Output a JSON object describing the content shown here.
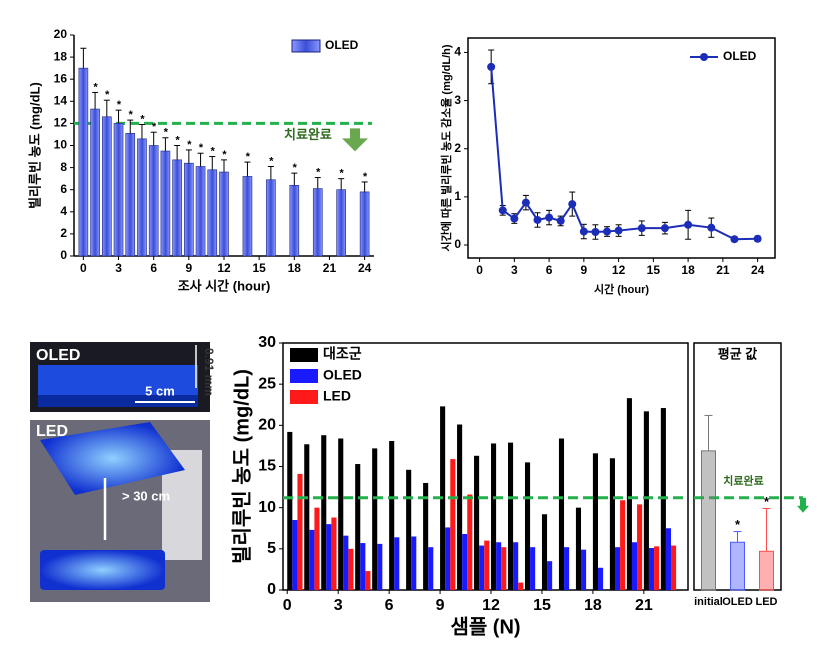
{
  "chart_data": [
    {
      "type": "bar",
      "xlabel": "조사 시간 (hour)",
      "ylabel": "빌리루빈 농도 (mg/dL)",
      "x": [
        0,
        1,
        2,
        3,
        4,
        5,
        6,
        7,
        8,
        9,
        10,
        11,
        12,
        14,
        16,
        18,
        20,
        22,
        24
      ],
      "series": [
        {
          "name": "OLED",
          "color": "#3b4fd8",
          "values": [
            17.0,
            13.3,
            12.6,
            12.0,
            11.1,
            10.6,
            10.0,
            9.5,
            8.7,
            8.4,
            8.1,
            7.8,
            7.6,
            7.2,
            6.9,
            6.4,
            6.1,
            6.0,
            5.8
          ],
          "errors": [
            1.8,
            1.5,
            1.5,
            1.2,
            1.2,
            1.3,
            1.2,
            1.2,
            1.3,
            1.2,
            1.2,
            1.2,
            1.1,
            1.3,
            1.2,
            1.1,
            1.0,
            1.0,
            0.9
          ],
          "significance": [
            null,
            "*",
            "*",
            "*",
            "*",
            "*",
            "*",
            "*",
            "*",
            "*",
            "*",
            "*",
            "*",
            "*",
            "*",
            "*",
            "*",
            "*",
            "*"
          ]
        }
      ],
      "xlim": [
        -0.8,
        24.8
      ],
      "xticks": [
        0,
        3,
        6,
        9,
        12,
        15,
        18,
        21,
        24
      ],
      "ylim": [
        0,
        20
      ],
      "yticks": [
        0,
        2,
        4,
        6,
        8,
        10,
        12,
        14,
        16,
        18,
        20
      ],
      "threshold": {
        "value": 12,
        "label": "치료완료",
        "color": "#22b14c"
      },
      "legend": "upper right"
    },
    {
      "type": "line",
      "xlabel": "시간 (hour)",
      "ylabel": "시간에 따른 빌리루빈 농도 감소율 (mg/dL/h)",
      "x": [
        1,
        2,
        3,
        4,
        5,
        6,
        7,
        8,
        9,
        10,
        11,
        12,
        14,
        16,
        18,
        20,
        22,
        24
      ],
      "series": [
        {
          "name": "OLED",
          "color": "#1c2db8",
          "values": [
            3.7,
            0.72,
            0.55,
            0.88,
            0.52,
            0.57,
            0.5,
            0.85,
            0.28,
            0.27,
            0.28,
            0.3,
            0.35,
            0.35,
            0.42,
            0.36,
            0.12,
            0.13
          ],
          "errors": [
            0.35,
            0.1,
            0.1,
            0.15,
            0.15,
            0.15,
            0.1,
            0.25,
            0.15,
            0.15,
            0.1,
            0.12,
            0.15,
            0.12,
            0.3,
            0.2,
            0.05,
            0.05
          ]
        }
      ],
      "xlim": [
        -1,
        25.5
      ],
      "xticks": [
        0,
        3,
        6,
        9,
        12,
        15,
        18,
        21,
        24
      ],
      "ylim": [
        -0.27,
        4.3
      ],
      "yticks": [
        0,
        1,
        2,
        3,
        4
      ],
      "legend": "upper right"
    },
    {
      "type": "grouped_bar",
      "xlabel": "샘플 (N)",
      "ylabel": "빌리루빈 농도 (mg/dL)",
      "x": [
        0,
        1,
        2,
        3,
        4,
        5,
        6,
        7,
        8,
        9,
        10,
        11,
        12,
        13,
        14,
        15,
        16,
        17,
        18,
        19,
        20,
        21,
        22
      ],
      "series": [
        {
          "name": "대조군",
          "color": "#000000",
          "values": [
            19.2,
            17.7,
            18.8,
            18.4,
            15.3,
            17.2,
            18.1,
            14.6,
            13.0,
            22.3,
            20.1,
            16.3,
            17.8,
            17.9,
            15.5,
            9.2,
            18.4,
            10.0,
            16.6,
            16.0,
            23.3,
            21.7,
            22.1
          ]
        },
        {
          "name": "OLED",
          "color": "#1a1aff",
          "values": [
            8.5,
            7.3,
            8.0,
            6.6,
            5.7,
            5.6,
            6.4,
            6.5,
            5.2,
            7.6,
            6.8,
            5.4,
            5.8,
            5.8,
            5.2,
            3.5,
            5.2,
            4.9,
            2.7,
            5.2,
            5.8,
            5.1,
            7.5
          ]
        },
        {
          "name": "LED",
          "color": "#ff1a1a",
          "values": [
            14.1,
            10.0,
            8.8,
            5.0,
            2.3,
            null,
            null,
            null,
            null,
            15.9,
            11.6,
            6.0,
            5.2,
            0.9,
            null,
            null,
            null,
            null,
            null,
            10.9,
            10.4,
            5.3,
            5.4
          ]
        }
      ],
      "xlim": [
        -0.25,
        23.6
      ],
      "xticks": [
        0,
        3,
        6,
        9,
        12,
        15,
        18,
        21
      ],
      "ylim": [
        0,
        30
      ],
      "yticks": [
        0,
        5,
        10,
        15,
        20,
        25,
        30
      ],
      "threshold": {
        "value": 11.2,
        "color": "#22b14c"
      },
      "legend": "upper left"
    },
    {
      "type": "mean_bar",
      "title": "평균 값",
      "categories": [
        "initial",
        "OLED",
        "LED"
      ],
      "values": [
        16.9,
        5.8,
        4.7
      ],
      "errors": [
        4.3,
        1.3,
        5.2
      ],
      "colors": [
        "#777777",
        "#4d5cff",
        "#ff4d4d"
      ],
      "significance": [
        null,
        "*",
        "*"
      ],
      "ylim": [
        0,
        30
      ],
      "threshold": {
        "value": 11.2,
        "label": "치료완료",
        "color": "#22b14c"
      }
    }
  ],
  "photos": [
    {
      "label": "OLED",
      "annotations": [
        "0.91 mm",
        "5 cm"
      ]
    },
    {
      "label": "LED",
      "annotations": [
        "> 30 cm"
      ]
    }
  ]
}
